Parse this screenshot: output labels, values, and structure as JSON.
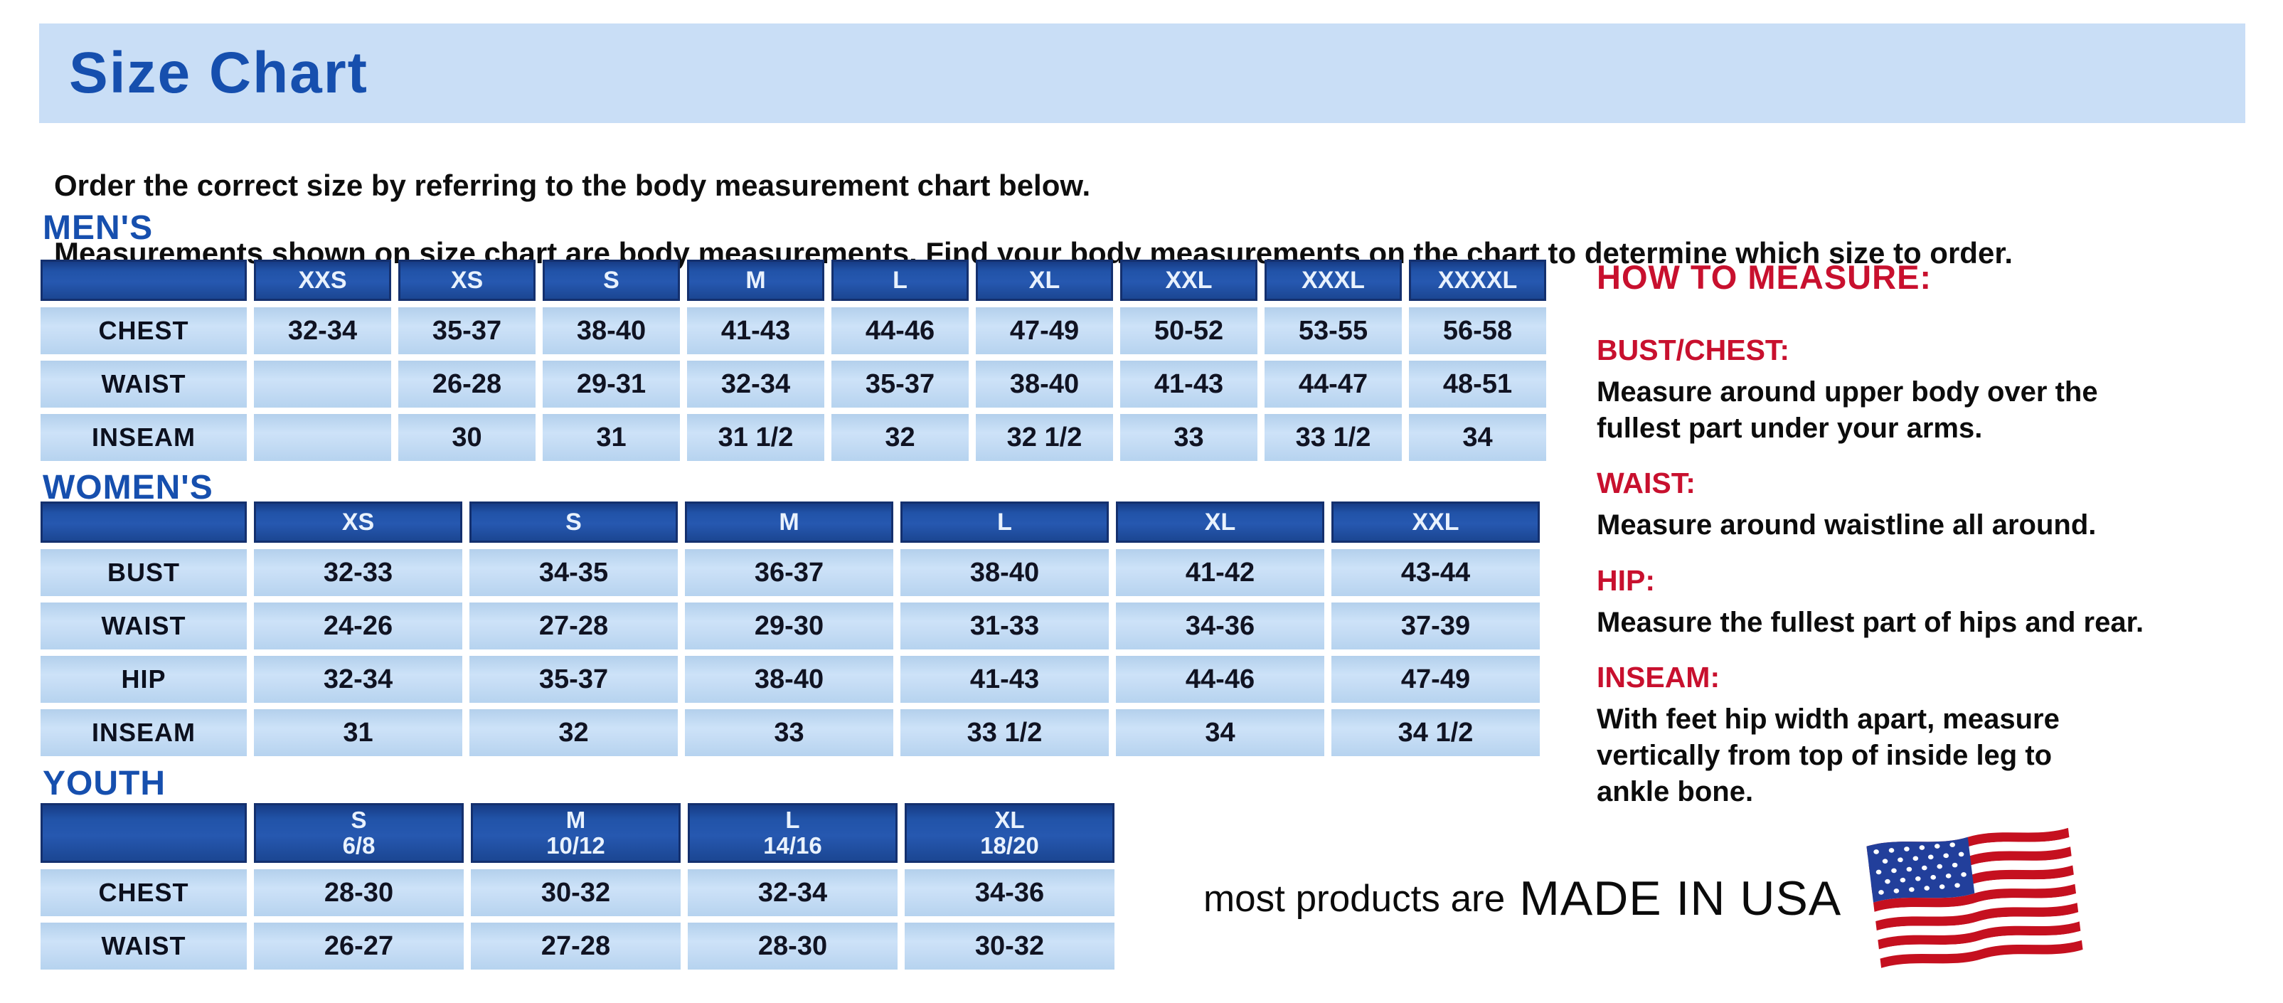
{
  "page_title": "Size Chart",
  "intro": {
    "line1": "Order the correct size by referring to the body measurement chart below.",
    "line2": "Measurements shown on size chart are body measurements.  Find your body measurements on the chart to determine which size to order."
  },
  "tables": {
    "mens": {
      "heading": "MEN'S",
      "columns": [
        "XXS",
        "XS",
        "S",
        "M",
        "L",
        "XL",
        "XXL",
        "XXXL",
        "XXXXL"
      ],
      "rows": [
        {
          "label": "CHEST",
          "values": [
            "32-34",
            "35-37",
            "38-40",
            "41-43",
            "44-46",
            "47-49",
            "50-52",
            "53-55",
            "56-58"
          ]
        },
        {
          "label": "WAIST",
          "values": [
            "",
            "26-28",
            "29-31",
            "32-34",
            "35-37",
            "38-40",
            "41-43",
            "44-47",
            "48-51"
          ]
        },
        {
          "label": "INSEAM",
          "values": [
            "",
            "30",
            "31",
            "31 1/2",
            "32",
            "32 1/2",
            "33",
            "33 1/2",
            "34"
          ]
        }
      ]
    },
    "womens": {
      "heading": "WOMEN'S",
      "columns": [
        "XS",
        "S",
        "M",
        "L",
        "XL",
        "XXL"
      ],
      "rows": [
        {
          "label": "BUST",
          "values": [
            "32-33",
            "34-35",
            "36-37",
            "38-40",
            "41-42",
            "43-44"
          ]
        },
        {
          "label": "WAIST",
          "values": [
            "24-26",
            "27-28",
            "29-30",
            "31-33",
            "34-36",
            "37-39"
          ]
        },
        {
          "label": "HIP",
          "values": [
            "32-34",
            "35-37",
            "38-40",
            "41-43",
            "44-46",
            "47-49"
          ]
        },
        {
          "label": "INSEAM",
          "values": [
            "31",
            "32",
            "33",
            "33 1/2",
            "34",
            "34 1/2"
          ]
        }
      ]
    },
    "youth": {
      "heading": "YOUTH",
      "columns": [
        {
          "label": "S",
          "sub": "6/8"
        },
        {
          "label": "M",
          "sub": "10/12"
        },
        {
          "label": "L",
          "sub": "14/16"
        },
        {
          "label": "XL",
          "sub": "18/20"
        }
      ],
      "rows": [
        {
          "label": "CHEST",
          "values": [
            "28-30",
            "30-32",
            "32-34",
            "34-36"
          ]
        },
        {
          "label": "WAIST",
          "values": [
            "26-27",
            "27-28",
            "28-30",
            "30-32"
          ]
        }
      ]
    }
  },
  "how_to_measure": {
    "heading": "HOW TO MEASURE:",
    "sections": [
      {
        "label": "BUST/CHEST:",
        "text": "Measure around upper body over the\nfullest part under your arms."
      },
      {
        "label": "WAIST:",
        "text": "Measure around waistline all around."
      },
      {
        "label": "HIP:",
        "text": "Measure the fullest part of hips and rear."
      },
      {
        "label": "INSEAM:",
        "text": "With feet hip width apart, measure\nvertically from top of inside leg to\nankle bone."
      }
    ]
  },
  "footer": {
    "prefix": "most products are",
    "emphasis": "MADE IN USA",
    "flag_icon": "usa-flag"
  },
  "colors": {
    "banner-bg": "#c9def6",
    "heading-blue": "#164fae",
    "header-cell-blue": "#2153a8",
    "header-cell-border": "#14306e",
    "cell-bg": "#c0d9f2",
    "red": "#c8102e",
    "flag-red": "#c5101f",
    "flag-blue": "#223f9b"
  }
}
